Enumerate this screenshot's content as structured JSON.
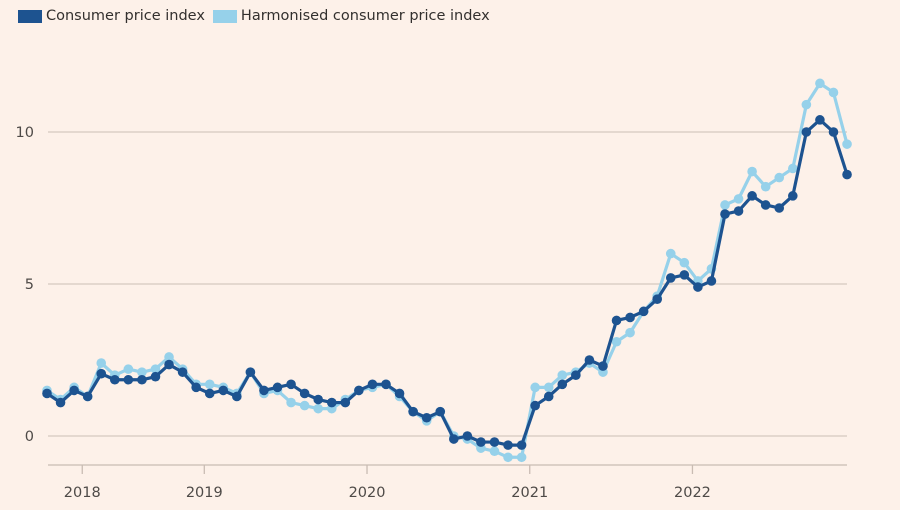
{
  "chart_data": {
    "type": "line",
    "title": "",
    "xlabel": "",
    "ylabel": "",
    "ylim": [
      -1,
      12
    ],
    "grid": true,
    "legend_position": "top-left",
    "x_start": "2018-01",
    "x_frequency": "monthly",
    "x_tick_labels": [
      "2018",
      "2019",
      "2020",
      "2021",
      "2022"
    ],
    "y_ticks": [
      0,
      5,
      10
    ],
    "y_tick_labels": [
      "0",
      "5",
      "10"
    ],
    "series": [
      {
        "name": "Consumer price index",
        "color": "#1d5390",
        "values": [
          1.4,
          1.1,
          1.5,
          1.3,
          2.05,
          1.85,
          1.85,
          1.85,
          1.95,
          2.35,
          2.1,
          1.6,
          1.4,
          1.5,
          1.3,
          2.1,
          1.5,
          1.6,
          1.7,
          1.4,
          1.2,
          1.1,
          1.1,
          1.5,
          1.7,
          1.7,
          1.4,
          0.8,
          0.6,
          0.8,
          -0.1,
          0.0,
          -0.2,
          -0.2,
          -0.3,
          -0.3,
          1.0,
          1.3,
          1.7,
          2.0,
          2.5,
          2.3,
          3.8,
          3.9,
          4.1,
          4.5,
          5.2,
          5.3,
          4.9,
          5.1,
          7.3,
          7.4,
          7.9,
          7.6,
          7.5,
          7.9,
          10.0,
          10.4,
          10.0,
          8.6
        ]
      },
      {
        "name": "Harmonised consumer price index",
        "color": "#96d1ea",
        "values": [
          1.5,
          1.2,
          1.6,
          1.3,
          2.4,
          2.0,
          2.2,
          2.1,
          2.2,
          2.6,
          2.2,
          1.7,
          1.7,
          1.6,
          1.4,
          2.1,
          1.4,
          1.5,
          1.1,
          1.0,
          0.9,
          0.9,
          1.2,
          1.5,
          1.6,
          1.7,
          1.3,
          0.8,
          0.5,
          0.8,
          0.0,
          -0.1,
          -0.4,
          -0.5,
          -0.7,
          -0.7,
          1.6,
          1.6,
          2.0,
          2.1,
          2.4,
          2.1,
          3.1,
          3.4,
          4.1,
          4.6,
          6.0,
          5.7,
          5.1,
          5.5,
          7.6,
          7.8,
          8.7,
          8.2,
          8.5,
          8.8,
          10.9,
          11.6,
          11.3,
          9.6
        ]
      }
    ]
  }
}
